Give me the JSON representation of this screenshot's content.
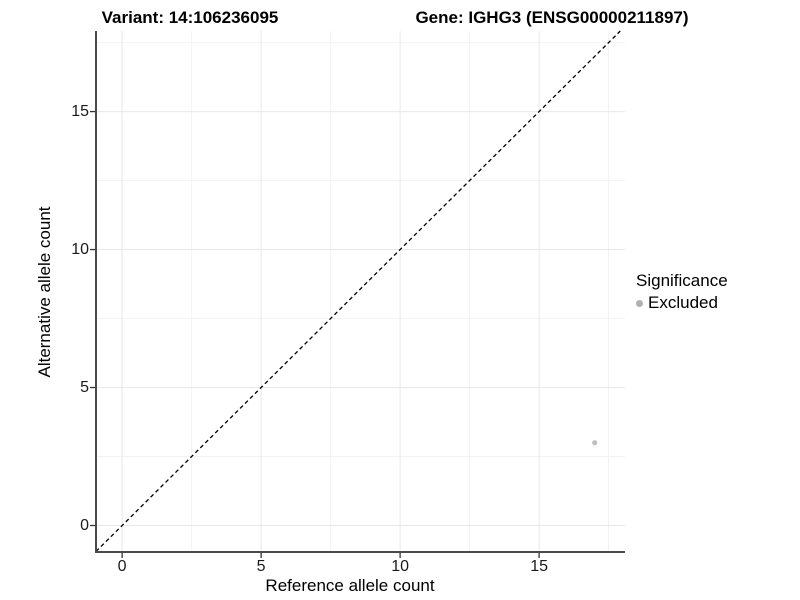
{
  "titles": {
    "variant": "Variant: 14:106236095",
    "gene": "Gene: IGHG3 (ENSG00000211897)"
  },
  "chart_data": {
    "type": "scatter",
    "title_left": "Variant: 14:106236095",
    "title_right": "Gene: IGHG3 (ENSG00000211897)",
    "xlabel": "Reference allele count",
    "ylabel": "Alternative allele count",
    "x_ticks": [
      0,
      5,
      10,
      15
    ],
    "y_ticks": [
      0,
      5,
      10,
      15
    ],
    "xlim": [
      -0.94,
      18.09
    ],
    "ylim": [
      -0.96,
      17.92
    ],
    "grid": {
      "major": true,
      "minor": true
    },
    "reference_line": {
      "type": "identity",
      "slope": 1,
      "intercept": 0,
      "style": "dashed",
      "color": "#000000"
    },
    "series": [
      {
        "name": "Excluded",
        "color": "#bfbfbf",
        "points": [
          {
            "x": 17,
            "y": 3
          }
        ]
      }
    ],
    "legend": {
      "title": "Significance",
      "position": "right",
      "items": [
        {
          "label": "Excluded",
          "color": "#b0b0b0"
        }
      ]
    },
    "style": {
      "background": "#ffffff",
      "grid_major_color": "#e8e8e8",
      "grid_minor_color": "#f2f2f2",
      "axis_line_color": "#4a4a4a",
      "tick_mark_color": "#333333",
      "tick_label_color": "#1a1a1a"
    }
  }
}
